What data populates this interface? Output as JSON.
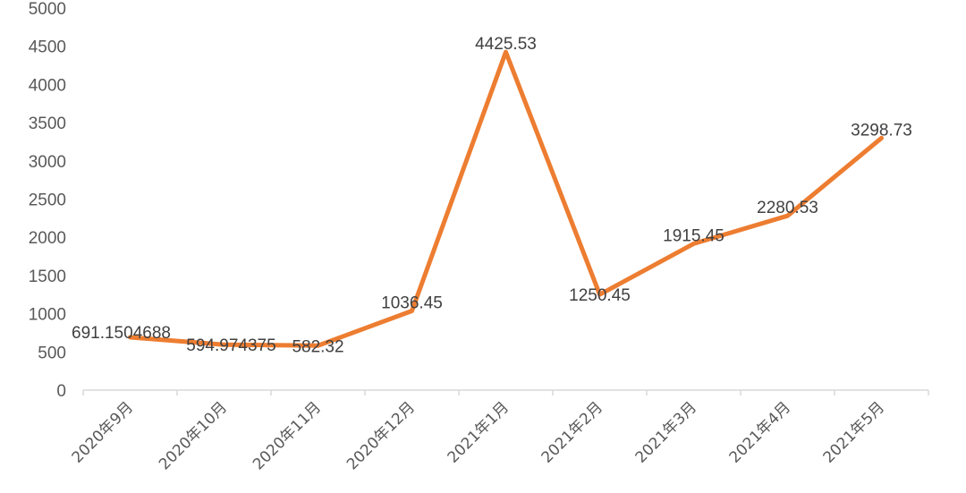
{
  "chart_data": {
    "type": "line",
    "categories": [
      "2020年9月",
      "2020年10月",
      "2020年11月",
      "2020年12月",
      "2021年1月",
      "2021年2月",
      "2021年3月",
      "2021年4月",
      "2021年5月"
    ],
    "series": [
      {
        "values": [
          691.1504688,
          594.974375,
          582.32,
          1036.45,
          4425.53,
          1250.45,
          1915.45,
          2280.53,
          3298.73
        ],
        "labels": [
          "691.1504688",
          "594.974375",
          "582.32",
          "1036.45",
          "4425.53",
          "1250.45",
          "1915.45",
          "2280.53",
          "3298.73"
        ],
        "color": "#ED7D31"
      }
    ],
    "y_ticks": [
      "0",
      "500",
      "1000",
      "1500",
      "2000",
      "2500",
      "3000",
      "3500",
      "4000",
      "4500",
      "5000"
    ],
    "ylim": [
      0,
      5000
    ],
    "grid": false,
    "axis_color": "#D9D9D9",
    "text_color": "#595959"
  }
}
